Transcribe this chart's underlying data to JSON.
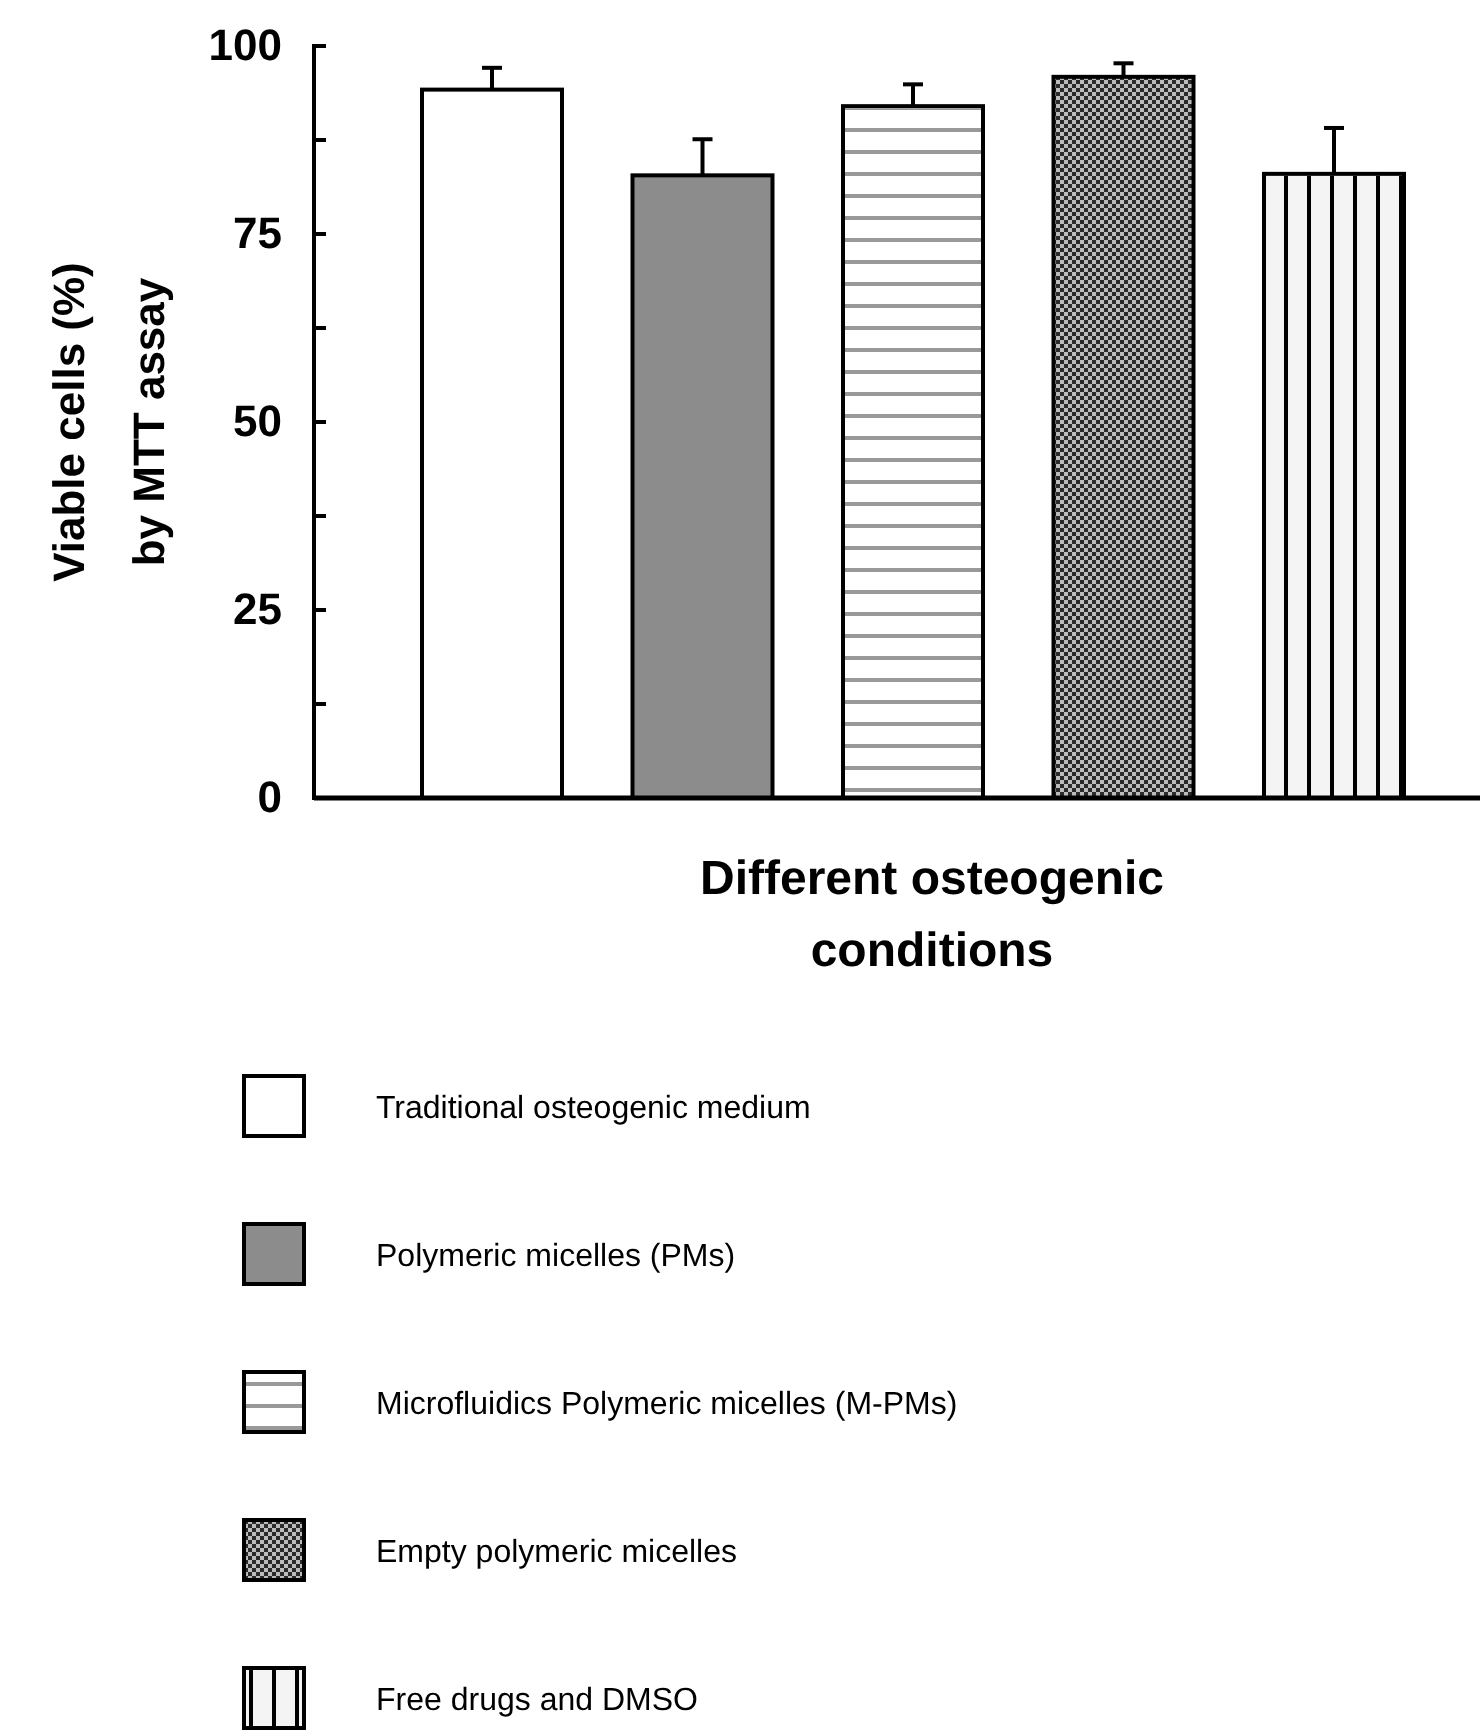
{
  "chart_data": {
    "type": "bar",
    "ylabel": "Viable cells (%)\nby MTT assay",
    "xlabel": "Different osteogenic conditions",
    "categories": [
      null,
      null,
      null,
      null,
      null
    ],
    "series": [
      {
        "name": "Traditional osteogenic medium",
        "color": "#ffffff",
        "values": [
          94.2,
          null,
          null,
          null,
          null
        ],
        "errors": [
          [
            94.2,
            97.1
          ],
          null,
          null,
          null,
          null
        ]
      },
      {
        "name": "Polymeric micelles (PMs)",
        "color": "#8c8c8c",
        "values": [
          null,
          82.8,
          null,
          null,
          null
        ],
        "errors": [
          null,
          [
            82.8,
            87.6
          ],
          null,
          null,
          null
        ]
      },
      {
        "name": "Microfluidics Polymeric micelles (M-PMs)",
        "color": "#ffffff",
        "values": [
          null,
          null,
          92.0,
          null,
          null
        ],
        "errors": [
          null,
          null,
          [
            92.0,
            94.9
          ],
          null,
          null
        ]
      },
      {
        "name": "Empty polymeric micelles",
        "color": "#2a2a2a",
        "values": [
          null,
          null,
          null,
          95.9,
          null
        ],
        "errors": [
          null,
          null,
          null,
          [
            95.9,
            97.7
          ],
          null
        ]
      },
      {
        "name": "Free drugs and DMSO",
        "color": "#f4f4f4",
        "values": [
          null,
          null,
          null,
          null,
          83.0
        ],
        "errors": [
          null,
          null,
          null,
          null,
          [
            83.0,
            89.1
          ]
        ]
      }
    ],
    "ylim": [
      0,
      100
    ],
    "yticks": [
      0,
      {
        "value": 12.5,
        "label": null
      },
      25,
      {
        "value": 37.5,
        "label": null
      },
      50,
      {
        "value": 62.5,
        "label": null
      },
      75,
      {
        "value": 87.5,
        "label": null
      },
      100
    ],
    "legend": "bottom"
  }
}
